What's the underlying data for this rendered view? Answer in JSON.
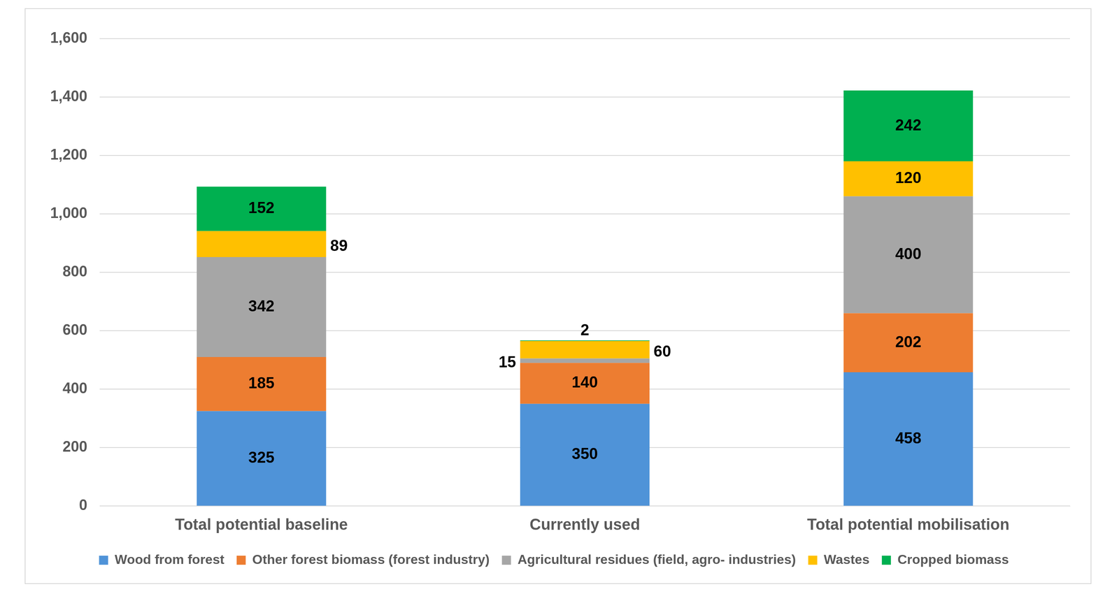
{
  "chart_data": {
    "type": "bar",
    "categories": [
      "Total potential baseline",
      "Currently used",
      "Total potential mobilisation"
    ],
    "series": [
      {
        "name": "Wood from forest",
        "color": "#4f93d8",
        "values": [
          325,
          350,
          458
        ]
      },
      {
        "name": "Other forest biomass (forest industry)",
        "color": "#ed7d31",
        "values": [
          185,
          140,
          202
        ]
      },
      {
        "name": "Agricultural residues (field, agro- industries)",
        "color": "#a6a6a6",
        "values": [
          342,
          15,
          400
        ]
      },
      {
        "name": "Wastes",
        "color": "#ffc000",
        "values": [
          89,
          60,
          120
        ]
      },
      {
        "name": "Cropped biomass",
        "color": "#00b050",
        "values": [
          152,
          2,
          242
        ]
      }
    ],
    "ylim": [
      0,
      1600
    ],
    "yticks": [
      0,
      200,
      400,
      600,
      800,
      {
        "value": 1000,
        "label": "1,000"
      },
      {
        "value": 1200,
        "label": "1,200"
      },
      {
        "value": 1400,
        "label": "1,400"
      },
      {
        "value": 1600,
        "label": "1,600"
      }
    ],
    "grid": true,
    "stacked": true,
    "data_labels": true,
    "legend": "bottom"
  }
}
